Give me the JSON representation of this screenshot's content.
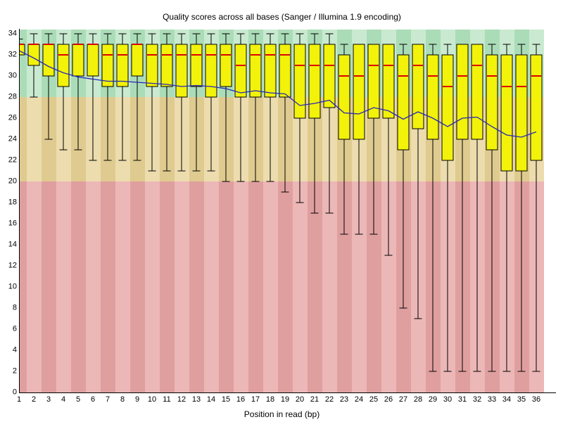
{
  "title": "Quality scores across all bases (Sanger / Illumina 1.9 encoding)",
  "x_axis_title": "Position in read (bp)",
  "y_tick_step": 2,
  "colors": {
    "box_fill": "#f2f20a",
    "box_border": "#000000",
    "median": "#dd0000",
    "mean_line": "#2828b4",
    "whisker": "#000000",
    "axis": "#000000",
    "zone_good_base": "#c9ead0",
    "zone_good_stripe": "#abdcb8",
    "zone_ok_base": "#ecdcae",
    "zone_ok_stripe": "#dfcb8f",
    "zone_bad_base": "#ecb7b7",
    "zone_bad_stripe": "#e09f9f",
    "background": "#ffffff"
  },
  "chart_data": {
    "type": "boxplot",
    "title": "Quality scores across all bases (Sanger / Illumina 1.9 encoding)",
    "xlabel": "Position in read (bp)",
    "ylabel": "",
    "ylim": [
      0,
      34.4
    ],
    "y_ticks": [
      0,
      2,
      4,
      6,
      8,
      10,
      12,
      14,
      16,
      18,
      20,
      22,
      24,
      26,
      28,
      30,
      32,
      34
    ],
    "grid": false,
    "legend": "none",
    "zones": [
      {
        "name": "good",
        "from": 28,
        "to": 34.4
      },
      {
        "name": "ok",
        "from": 20,
        "to": 28
      },
      {
        "name": "bad",
        "from": 0,
        "to": 20
      }
    ],
    "categories": [
      1,
      2,
      3,
      4,
      5,
      6,
      7,
      8,
      9,
      10,
      11,
      12,
      13,
      14,
      15,
      16,
      17,
      18,
      19,
      20,
      21,
      22,
      23,
      24,
      25,
      26,
      27,
      28,
      29,
      30,
      31,
      32,
      33,
      34,
      35,
      36
    ],
    "q10": [
      32,
      28,
      24,
      23,
      23,
      22,
      22,
      22,
      22,
      21,
      21,
      21,
      21,
      21,
      20,
      20,
      20,
      20,
      19,
      18,
      17,
      17,
      15,
      15,
      15,
      13,
      8,
      7,
      2,
      2,
      2,
      2,
      2,
      2,
      2,
      2
    ],
    "q25": [
      32,
      31,
      30,
      29,
      30,
      30,
      29,
      29,
      30,
      29,
      29,
      28,
      29,
      28,
      29,
      28,
      28,
      28,
      28,
      26,
      26,
      27,
      24,
      24,
      26,
      26,
      23,
      25,
      24,
      22,
      24,
      24,
      23,
      21,
      21,
      22
    ],
    "median": [
      33,
      33,
      33,
      32,
      33,
      33,
      32,
      32,
      33,
      32,
      32,
      32,
      32,
      32,
      32,
      31,
      32,
      32,
      32,
      31,
      31,
      31,
      30,
      30,
      31,
      31,
      30,
      31,
      30,
      29,
      30,
      31,
      30,
      29,
      29,
      30
    ],
    "q75": [
      33,
      33,
      33,
      33,
      33,
      33,
      33,
      33,
      33,
      33,
      33,
      33,
      33,
      33,
      33,
      33,
      33,
      33,
      33,
      33,
      33,
      33,
      32,
      33,
      33,
      33,
      32,
      33,
      32,
      32,
      33,
      33,
      32,
      32,
      32,
      32
    ],
    "q90": [
      33.5,
      34,
      34,
      34,
      34,
      34,
      34,
      34,
      34,
      34,
      34,
      34,
      34,
      34,
      34,
      34,
      34,
      34,
      34,
      34,
      34,
      34,
      33,
      33,
      33,
      33,
      33,
      33,
      33,
      33,
      33,
      33,
      33,
      33,
      33,
      33
    ],
    "mean": [
      32.4,
      31.7,
      30.9,
      30.3,
      29.9,
      29.7,
      29.5,
      29.5,
      29.4,
      29.3,
      29.2,
      29.0,
      29.1,
      29.0,
      28.8,
      28.4,
      28.6,
      28.4,
      28.3,
      27.2,
      27.4,
      27.7,
      26.5,
      26.4,
      27.0,
      26.7,
      25.9,
      26.6,
      26.0,
      25.2,
      26.0,
      26.1,
      25.2,
      24.4,
      24.2,
      24.7
    ]
  }
}
